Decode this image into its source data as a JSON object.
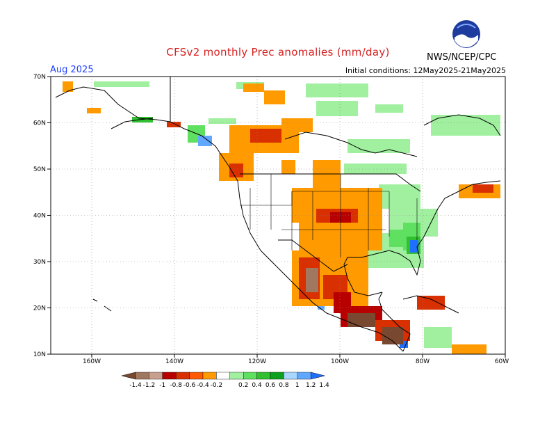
{
  "title": "CFSv2 monthly Prec anomalies (mm/day)",
  "valid_month": "Aug 2025",
  "initial_conditions": "Initial conditions: 12May2025-21May2025",
  "agency": "NWS/NCEP/CPC",
  "logo_text": "NOAA",
  "axes": {
    "lat_labels": [
      "70N",
      "60N",
      "50N",
      "40N",
      "30N",
      "20N",
      "10N"
    ],
    "lon_labels": [
      "160W",
      "140W",
      "120W",
      "100W",
      "80W",
      "60W"
    ]
  },
  "colorbar": {
    "labels": [
      "-1.4",
      "-1.2",
      "-1",
      "-0.8",
      "-0.6",
      "-0.4",
      "-0.2",
      "0.2",
      "0.4",
      "0.6",
      "0.8",
      "1",
      "1.2",
      "1.4"
    ],
    "colors": [
      "#784830",
      "#a07860",
      "#c8a090",
      "#b80000",
      "#d83000",
      "#ff5a00",
      "#ff9a00",
      "#ffffff",
      "#a0f0a0",
      "#60e060",
      "#30c030",
      "#10a020",
      "#a8d8ff",
      "#60a8ff",
      "#2070ff"
    ]
  },
  "colors": {
    "title": "#d62020",
    "valid_month": "#2040ff",
    "drier_strong": "#784830",
    "drier": "#ff9a00",
    "wetter": "#a0f0a0",
    "wettest": "#2070ff"
  }
}
